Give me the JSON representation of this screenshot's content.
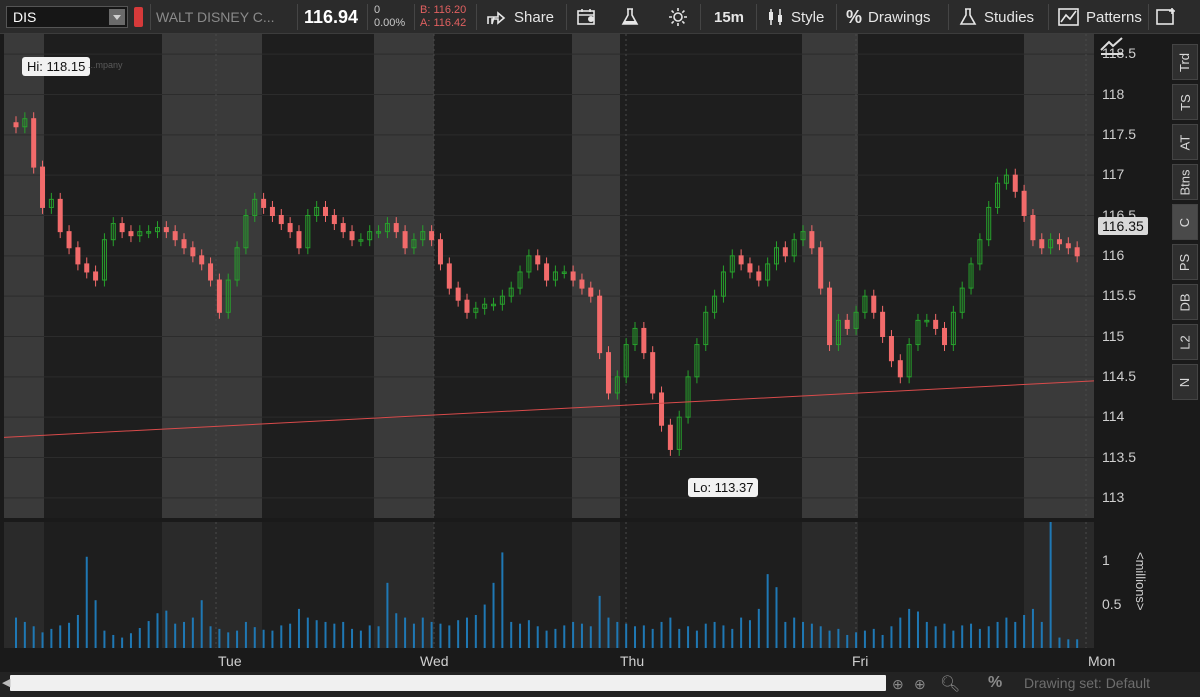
{
  "toolbar": {
    "symbol": "DIS",
    "company": "WALT DISNEY C...",
    "last": "116.94",
    "change": "0",
    "change_pct": "0.00%",
    "bid": "B: 116.20",
    "ask": "A: 116.42",
    "share_label": "Share",
    "timeframe": "15m",
    "style_label": "Style",
    "drawings_label": "Drawings",
    "studies_label": "Studies",
    "patterns_label": "Patterns"
  },
  "side_tabs": [
    "Trd",
    "TS",
    "AT",
    "Btns",
    "C",
    "PS",
    "DB",
    "L2",
    "N"
  ],
  "watermark": "...mpany",
  "price_tag": "116.35",
  "hi_label": "Hi: 118.15",
  "lo_label": "Lo: 113.37",
  "volume_unit": "<millions>",
  "drawing_set": "Drawing set: Default",
  "colors": {
    "up": "#27a12c",
    "down": "#f26b6b",
    "volume": "#1f78b4",
    "trendline": "#d94b4b",
    "shade": "#3a3a3a"
  },
  "chart_data": {
    "type": "candlestick",
    "interval": "15m",
    "days": [
      "Tue",
      "Wed",
      "Thu",
      "Fri",
      "Mon"
    ],
    "price_ticks": [
      113,
      113.5,
      114,
      114.5,
      115,
      115.5,
      116,
      116.5,
      117,
      117.5,
      118,
      118.5
    ],
    "ylim": [
      112.75,
      118.75
    ],
    "volume_ticks": [
      "0.5",
      "1"
    ],
    "volume_ylim": [
      0,
      1.45
    ],
    "trendline": {
      "start": 113.75,
      "end": 114.45
    },
    "high": 118.15,
    "low": 113.37,
    "close": [
      117.6,
      117.7,
      117.1,
      116.6,
      116.7,
      116.3,
      116.1,
      115.9,
      115.8,
      115.7,
      116.2,
      116.4,
      116.3,
      116.25,
      116.3,
      116.3,
      116.35,
      116.3,
      116.2,
      116.1,
      116.0,
      115.9,
      115.7,
      115.3,
      115.7,
      116.1,
      116.5,
      116.7,
      116.6,
      116.5,
      116.4,
      116.3,
      116.1,
      116.5,
      116.6,
      116.5,
      116.4,
      116.3,
      116.2,
      116.2,
      116.3,
      116.3,
      116.4,
      116.3,
      116.1,
      116.2,
      116.3,
      116.2,
      115.9,
      115.6,
      115.45,
      115.3,
      115.35,
      115.4,
      115.4,
      115.5,
      115.6,
      115.8,
      116.0,
      115.9,
      115.7,
      115.8,
      115.8,
      115.7,
      115.6,
      115.5,
      114.8,
      114.3,
      114.5,
      114.9,
      115.1,
      114.8,
      114.3,
      113.9,
      113.6,
      114.0,
      114.5,
      114.9,
      115.3,
      115.5,
      115.8,
      116.0,
      115.9,
      115.8,
      115.7,
      115.9,
      116.1,
      116.0,
      116.2,
      116.3,
      116.1,
      115.6,
      114.9,
      115.2,
      115.1,
      115.3,
      115.5,
      115.3,
      115.0,
      114.7,
      114.5,
      114.9,
      115.2,
      115.2,
      115.1,
      114.9,
      115.3,
      115.6,
      115.9,
      116.2,
      116.6,
      116.9,
      117.0,
      116.8,
      116.5,
      116.2,
      116.1,
      116.2,
      116.15,
      116.1,
      116.0
    ],
    "volume": [
      0.35,
      0.3,
      0.25,
      0.18,
      0.22,
      0.26,
      0.29,
      0.38,
      1.05,
      0.55,
      0.2,
      0.15,
      0.12,
      0.17,
      0.23,
      0.31,
      0.4,
      0.43,
      0.28,
      0.3,
      0.35,
      0.55,
      0.25,
      0.22,
      0.18,
      0.2,
      0.3,
      0.24,
      0.21,
      0.2,
      0.26,
      0.28,
      0.45,
      0.35,
      0.32,
      0.3,
      0.28,
      0.3,
      0.22,
      0.2,
      0.26,
      0.25,
      0.75,
      0.4,
      0.35,
      0.28,
      0.35,
      0.3,
      0.28,
      0.26,
      0.32,
      0.35,
      0.38,
      0.5,
      0.75,
      1.1,
      0.3,
      0.28,
      0.32,
      0.25,
      0.2,
      0.22,
      0.26,
      0.3,
      0.28,
      0.25,
      0.6,
      0.35,
      0.3,
      0.28,
      0.25,
      0.26,
      0.22,
      0.3,
      0.35,
      0.22,
      0.25,
      0.2,
      0.28,
      0.3,
      0.26,
      0.22,
      0.35,
      0.32,
      0.45,
      0.85,
      0.7,
      0.3,
      0.35,
      0.3,
      0.28,
      0.25,
      0.2,
      0.22,
      0.15,
      0.18,
      0.2,
      0.22,
      0.15,
      0.25,
      0.35,
      0.45,
      0.42,
      0.3,
      0.25,
      0.28,
      0.2,
      0.26,
      0.28,
      0.22,
      0.25,
      0.3,
      0.35,
      0.3,
      0.38,
      0.45,
      0.3,
      1.45,
      0.12,
      0.1,
      0.1
    ]
  }
}
